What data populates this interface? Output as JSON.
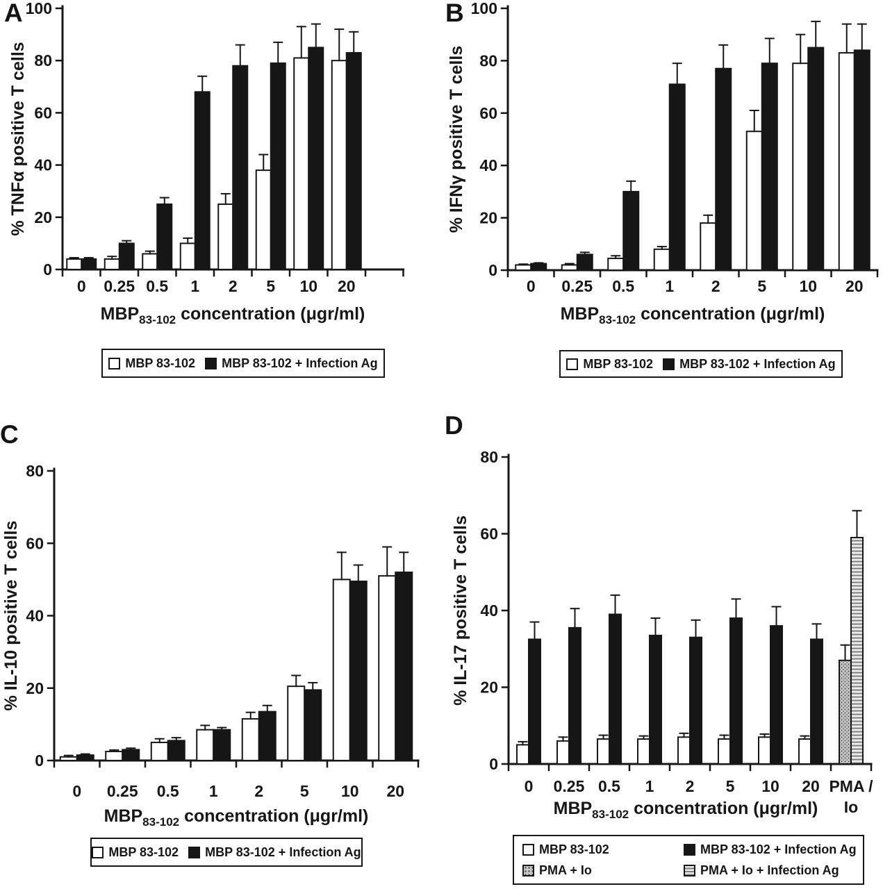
{
  "figure_background": "#ffffff",
  "colors": {
    "ink": "#161616",
    "bar_white": "#ffffff",
    "bar_black": "#161616",
    "bar_gray_stipple": "#c6c6c6",
    "bar_stripe_light": "#ececec",
    "bar_stripe_dark": "#7d7d7d"
  },
  "chart_data": [
    {
      "type": "bar",
      "panel_label": "A",
      "ylabel": "% TNFα positive T cells",
      "ylim": [
        0,
        100
      ],
      "yticks": [
        0,
        20,
        40,
        60,
        80,
        100
      ],
      "categories": [
        "0",
        "0.25",
        "0.5",
        "1",
        "2",
        "5",
        "10",
        "20"
      ],
      "xlabel_prefix": "MBP",
      "xlabel_sub": "83-102",
      "xlabel_suffix": " concentration (μgr/ml)",
      "series": [
        {
          "name": "MBP 83-102",
          "style": "white",
          "values": [
            4,
            4,
            6,
            10,
            25,
            38,
            81,
            80
          ],
          "errors": [
            0.5,
            1,
            1,
            2,
            4,
            6,
            12,
            12
          ]
        },
        {
          "name": "MBP 83-102 + Infection Ag",
          "style": "black",
          "values": [
            4,
            10,
            25,
            68,
            78,
            79,
            85,
            83
          ],
          "errors": [
            0.5,
            1,
            2.5,
            6,
            8,
            8,
            9,
            8
          ]
        }
      ],
      "legend": [
        {
          "style": "white",
          "label": "MBP 83-102"
        },
        {
          "style": "black",
          "label": "MBP 83-102 + Infection Ag"
        }
      ]
    },
    {
      "type": "bar",
      "panel_label": "B",
      "ylabel": "% IFNγ positive T cells",
      "ylim": [
        0,
        100
      ],
      "yticks": [
        0,
        20,
        40,
        60,
        80,
        100
      ],
      "categories": [
        "0",
        "0.25",
        "0.5",
        "1",
        "2",
        "5",
        "10",
        "20"
      ],
      "xlabel_prefix": "MBP",
      "xlabel_sub": "83-102",
      "xlabel_suffix": " concentration (μgr/ml)",
      "series": [
        {
          "name": "MBP 83-102",
          "style": "white",
          "values": [
            2,
            2,
            4.5,
            8,
            18,
            53,
            79,
            83
          ],
          "errors": [
            0.3,
            0.5,
            1,
            1,
            3,
            8,
            11,
            11
          ]
        },
        {
          "name": "MBP 83-102 + Infection Ag",
          "style": "black",
          "values": [
            2.5,
            6,
            30,
            71,
            77,
            79,
            85,
            84
          ],
          "errors": [
            0.3,
            0.8,
            4,
            8,
            9,
            9.5,
            10,
            10
          ]
        }
      ],
      "legend": [
        {
          "style": "white",
          "label": "MBP 83-102"
        },
        {
          "style": "black",
          "label": "MBP 83-102 + Infection Ag"
        }
      ]
    },
    {
      "type": "bar",
      "panel_label": "C",
      "ylabel": "% IL-10 positive T cells",
      "ylim": [
        0,
        80
      ],
      "yticks": [
        0,
        20,
        40,
        60,
        80
      ],
      "categories": [
        "0",
        "0.25",
        "0.5",
        "1",
        "2",
        "5",
        "10",
        "20"
      ],
      "xlabel_prefix": "MBP",
      "xlabel_sub": "83-102",
      "xlabel_suffix": " concentration (μgr/ml)",
      "series": [
        {
          "name": "MBP 83-102",
          "style": "white",
          "values": [
            1,
            2.5,
            5,
            8.5,
            11.5,
            20.5,
            50,
            51
          ],
          "errors": [
            0.4,
            0.4,
            1,
            1.2,
            1.8,
            3,
            7.5,
            8
          ]
        },
        {
          "name": "MBP 83-102 + Infection Ag",
          "style": "black",
          "values": [
            1.5,
            3,
            5.5,
            8.5,
            13.5,
            19.5,
            49.5,
            52
          ],
          "errors": [
            0.3,
            0.4,
            0.8,
            0.6,
            1.7,
            2,
            4.5,
            5.5
          ]
        }
      ],
      "legend": [
        {
          "style": "white",
          "label": "MBP 83-102"
        },
        {
          "style": "black",
          "label": "MBP 83-102 + Infection Ag"
        }
      ]
    },
    {
      "type": "bar",
      "panel_label": "D",
      "ylabel": "% IL-17 positive T cells",
      "ylim": [
        0,
        80
      ],
      "yticks": [
        0,
        20,
        40,
        60,
        80
      ],
      "categories": [
        "0",
        "0.25",
        "0.5",
        "1",
        "2",
        "5",
        "10",
        "20",
        "PMA /\nIo"
      ],
      "xlabel_prefix": "MBP",
      "xlabel_sub": "83-102",
      "xlabel_suffix": " concentration (μgr/ml)",
      "series": [
        {
          "name": "MBP 83-102",
          "style": "white",
          "values": [
            5,
            6,
            6.5,
            6.5,
            7,
            6.5,
            7,
            6.5,
            null
          ],
          "errors": [
            0.8,
            1,
            1,
            0.8,
            1,
            1,
            0.8,
            0.8,
            null
          ]
        },
        {
          "name": "MBP 83-102 + Infection Ag",
          "style": "black",
          "values": [
            32.5,
            35.5,
            39,
            33.5,
            33,
            38,
            36,
            32.5,
            null
          ],
          "errors": [
            4.5,
            5,
            5,
            4.5,
            4.5,
            5,
            5,
            4,
            null
          ]
        },
        {
          "name": "PMA + Io",
          "style": "gray",
          "values": [
            null,
            null,
            null,
            null,
            null,
            null,
            null,
            null,
            27
          ],
          "errors": [
            null,
            null,
            null,
            null,
            null,
            null,
            null,
            null,
            4
          ]
        },
        {
          "name": "PMA + Io + Infection Ag",
          "style": "stripes",
          "values": [
            null,
            null,
            null,
            null,
            null,
            null,
            null,
            null,
            59
          ],
          "errors": [
            null,
            null,
            null,
            null,
            null,
            null,
            null,
            null,
            7
          ]
        }
      ],
      "legend": [
        {
          "style": "white",
          "label": "MBP 83-102"
        },
        {
          "style": "black",
          "label": "MBP 83-102 + Infection Ag"
        },
        {
          "style": "gray",
          "label": "PMA + Io"
        },
        {
          "style": "stripes",
          "label": "PMA + Io + Infection Ag"
        }
      ]
    }
  ]
}
